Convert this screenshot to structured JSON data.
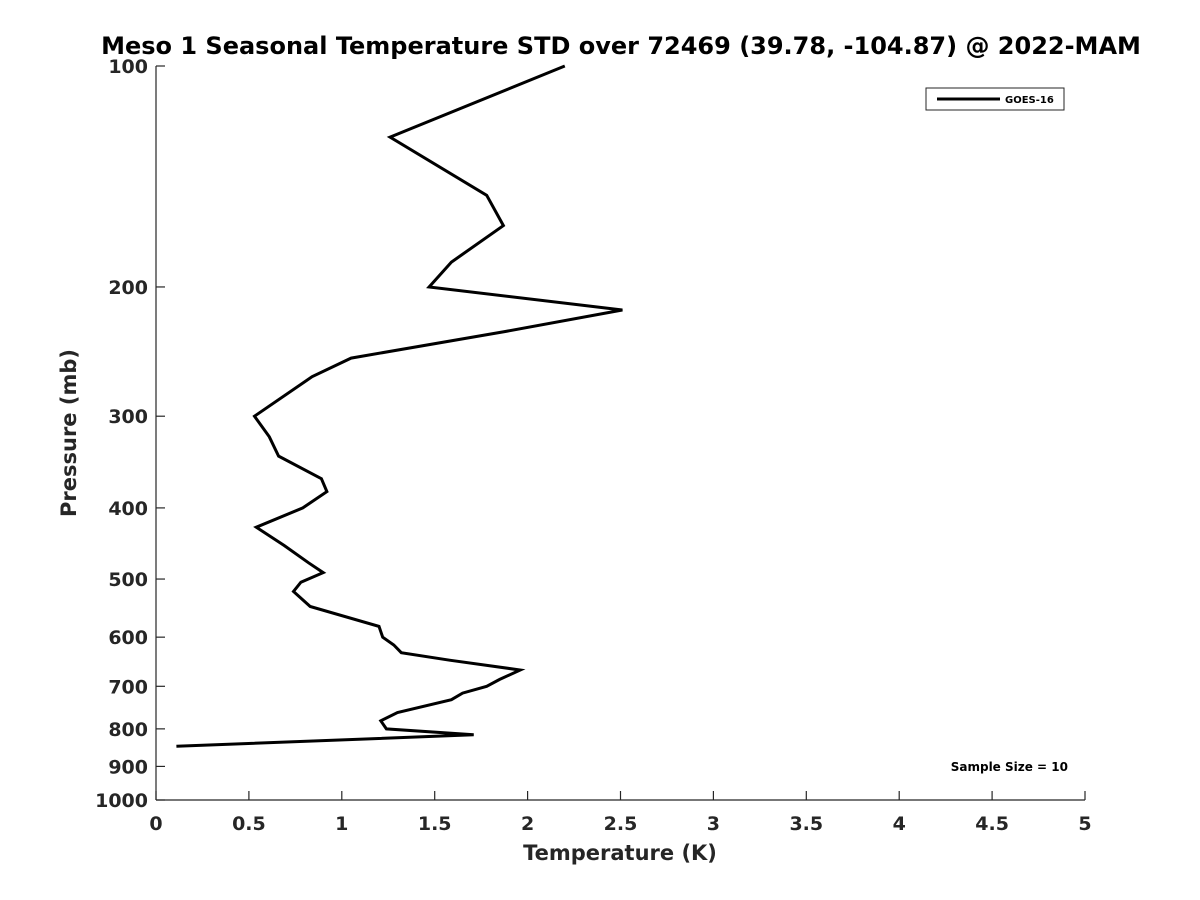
{
  "chart_data": {
    "type": "line",
    "title": "Meso 1 Seasonal Temperature STD over 72469 (39.78, -104.87) @ 2022-MAM",
    "xlabel": "Temperature (K)",
    "ylabel": "Pressure (mb)",
    "xlim": [
      0,
      5
    ],
    "ylim": [
      100,
      1000
    ],
    "y_scale": "log",
    "y_reversed": true,
    "grid": false,
    "xticks": [
      0,
      0.5,
      1,
      1.5,
      2,
      2.5,
      3,
      3.5,
      4,
      4.5,
      5
    ],
    "xtick_labels": [
      "0",
      "0.5",
      "1",
      "1.5",
      "2",
      "2.5",
      "3",
      "3.5",
      "4",
      "4.5",
      "5"
    ],
    "yticks": [
      100,
      200,
      300,
      400,
      500,
      600,
      700,
      800,
      900,
      1000
    ],
    "ytick_labels": [
      "100",
      "200",
      "300",
      "400",
      "500",
      "600",
      "700",
      "800",
      "900",
      "1000"
    ],
    "legend": {
      "position": "top-right",
      "entries": [
        "GOES-16"
      ]
    },
    "annotation": "Sample Size = 10",
    "series": [
      {
        "name": "GOES-16",
        "color": "#000000",
        "points": [
          [
            2.2,
            100
          ],
          [
            1.26,
            125
          ],
          [
            1.78,
            150
          ],
          [
            1.87,
            165
          ],
          [
            1.59,
            185
          ],
          [
            1.47,
            200
          ],
          [
            2.51,
            215
          ],
          [
            1.88,
            230
          ],
          [
            1.05,
            250
          ],
          [
            0.84,
            265
          ],
          [
            0.53,
            300
          ],
          [
            0.61,
            320
          ],
          [
            0.66,
            340
          ],
          [
            0.89,
            365
          ],
          [
            0.92,
            380
          ],
          [
            0.79,
            400
          ],
          [
            0.54,
            425
          ],
          [
            0.69,
            450
          ],
          [
            0.82,
            475
          ],
          [
            0.9,
            490
          ],
          [
            0.78,
            505
          ],
          [
            0.74,
            520
          ],
          [
            0.83,
            545
          ],
          [
            1.2,
            580
          ],
          [
            1.22,
            600
          ],
          [
            1.28,
            615
          ],
          [
            1.32,
            630
          ],
          [
            1.58,
            645
          ],
          [
            1.96,
            665
          ],
          [
            1.85,
            685
          ],
          [
            1.78,
            700
          ],
          [
            1.65,
            715
          ],
          [
            1.59,
            730
          ],
          [
            1.3,
            760
          ],
          [
            1.21,
            780
          ],
          [
            1.24,
            800
          ],
          [
            1.71,
            815
          ],
          [
            0.11,
            845
          ]
        ]
      }
    ]
  }
}
